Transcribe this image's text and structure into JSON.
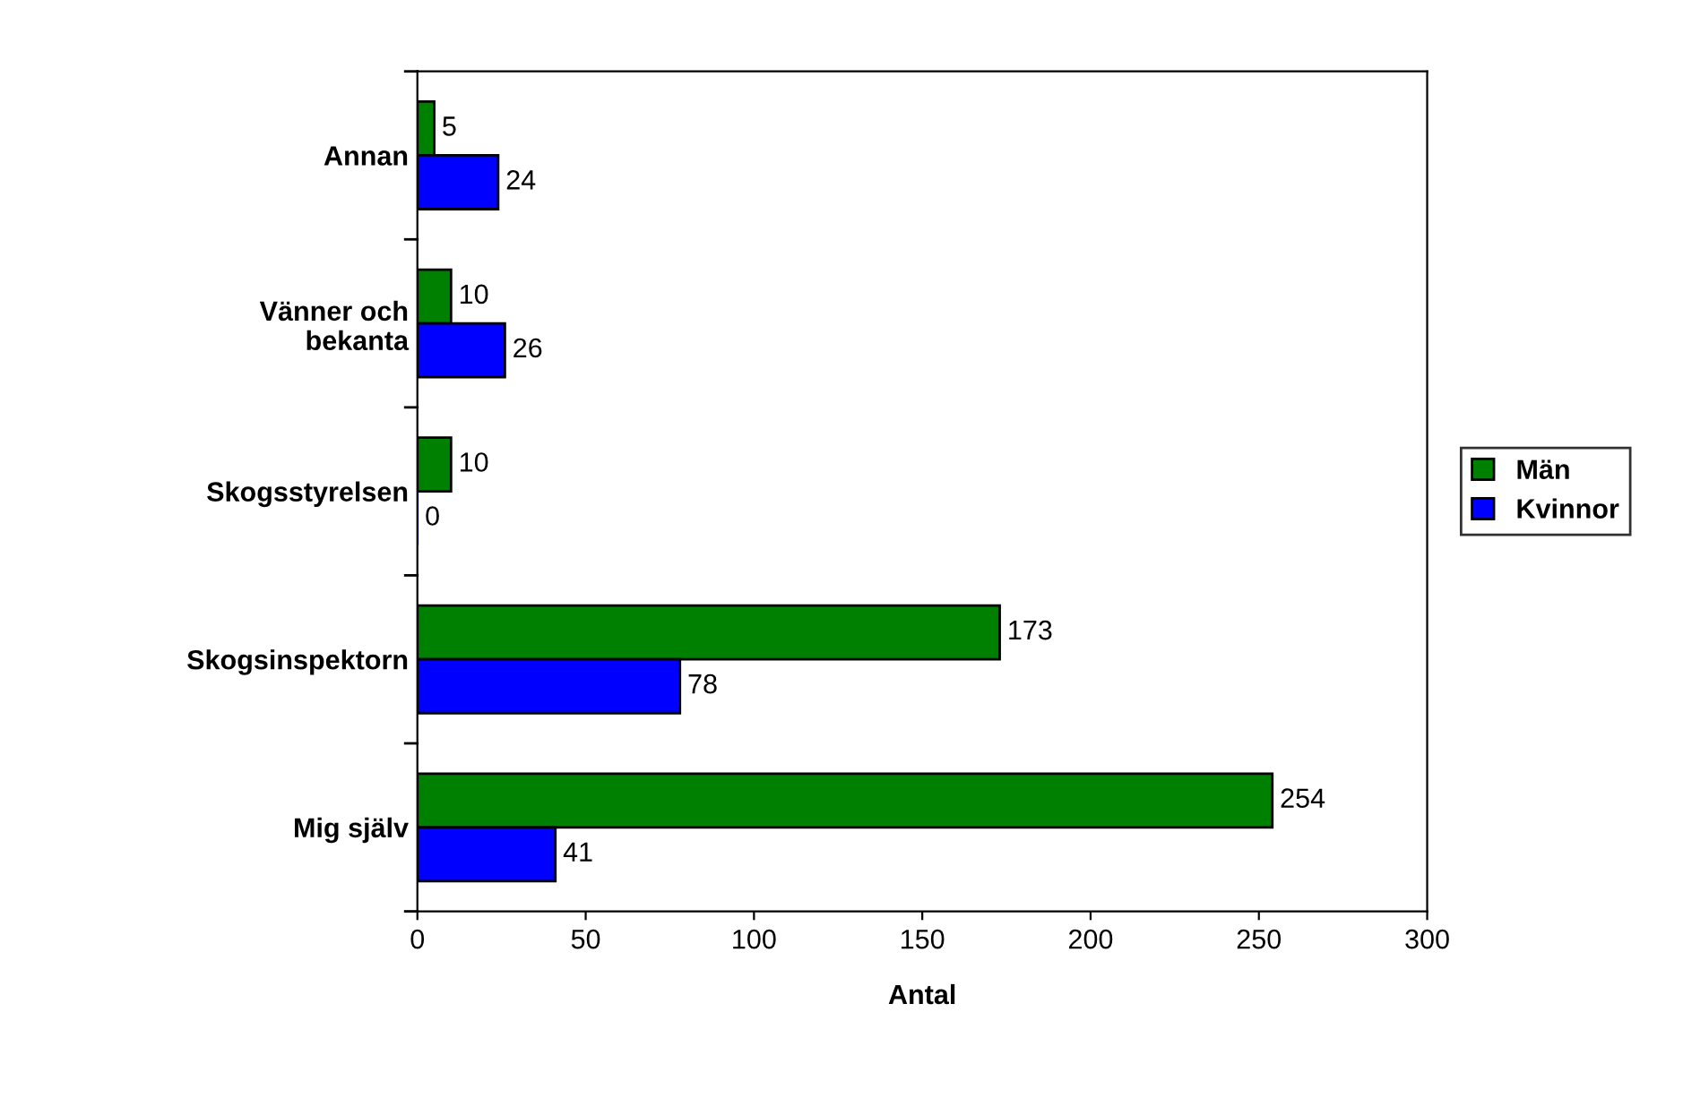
{
  "chart_data": {
    "type": "bar",
    "orientation": "horizontal",
    "xlabel": "Antal",
    "categories": [
      "Annan",
      "Vänner och\nbekanta",
      "Skogsstyrelsen",
      "Skogsinspektorn",
      "Mig själv"
    ],
    "series": [
      {
        "name": "Män",
        "color": "#008000",
        "values": [
          5,
          10,
          10,
          173,
          254
        ]
      },
      {
        "name": "Kvinnor",
        "color": "#0000ff",
        "values": [
          24,
          26,
          0,
          78,
          41
        ]
      }
    ],
    "xlim": [
      0,
      300
    ],
    "xticks": [
      0,
      50,
      100,
      150,
      200,
      250,
      300
    ],
    "data_labels": true,
    "grid": false,
    "legend": "right"
  }
}
